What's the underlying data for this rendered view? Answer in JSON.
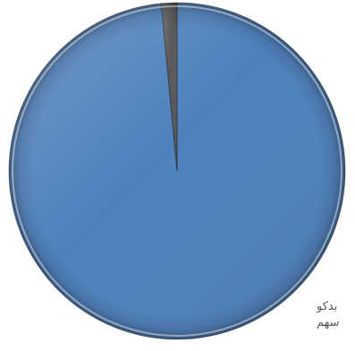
{
  "chart_data": {
    "type": "pie",
    "title": "",
    "slices": [
      {
        "label": "بدكو",
        "value": 98.5,
        "color": "#4f81bd"
      },
      {
        "label": "سهم",
        "value": 1.5,
        "color": "#595959"
      }
    ],
    "legend_placement": "bottom-right",
    "style": "3d-bevel"
  }
}
